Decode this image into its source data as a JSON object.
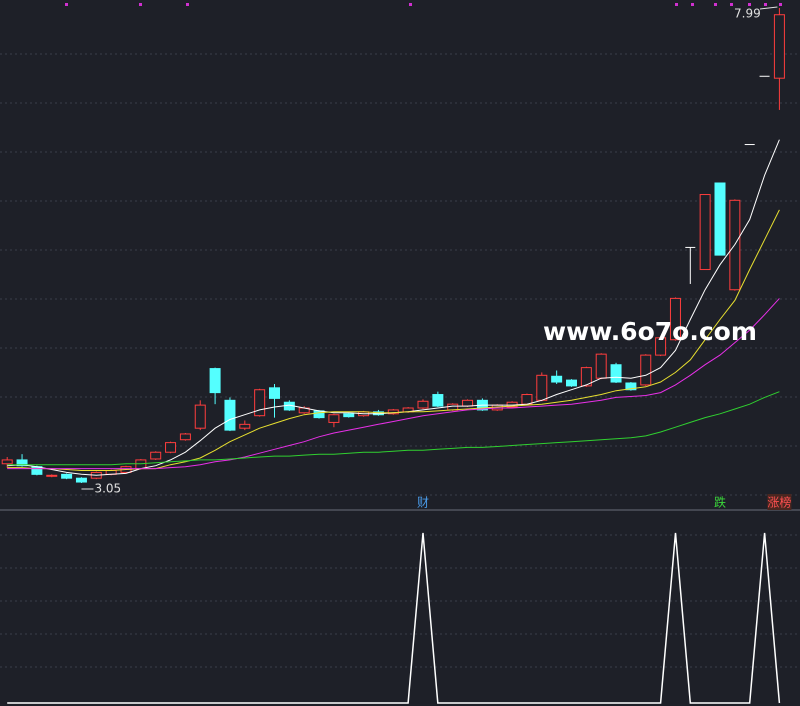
{
  "chart_data": {
    "type": "candlestick",
    "open": [
      3.25,
      3.29,
      3.22,
      3.12,
      3.14,
      3.1,
      3.1,
      3.14,
      3.16,
      3.2,
      3.3,
      3.37,
      3.5,
      3.62,
      4.24,
      3.91,
      3.62,
      3.75,
      4.04,
      3.89,
      3.78,
      3.8,
      3.68,
      3.77,
      3.75,
      3.79,
      3.77,
      3.79,
      3.83,
      3.97,
      3.81,
      3.85,
      3.91,
      3.81,
      3.84,
      3.87,
      3.91,
      4.16,
      4.12,
      4.06,
      4.14,
      4.28,
      4.09,
      4.07,
      4.38,
      4.54,
      5.5,
      5.27,
      6.17,
      5.06,
      6.57,
      7.28,
      7.26
    ],
    "high": [
      3.32,
      3.35,
      3.23,
      3.14,
      3.15,
      3.11,
      3.17,
      3.19,
      3.23,
      3.3,
      3.38,
      3.48,
      3.57,
      3.91,
      4.25,
      3.94,
      3.7,
      4.03,
      4.08,
      3.91,
      3.85,
      3.81,
      3.77,
      3.78,
      3.8,
      3.81,
      3.82,
      3.84,
      3.92,
      4.0,
      3.88,
      3.92,
      3.93,
      3.87,
      3.9,
      3.98,
      4.2,
      4.22,
      4.13,
      4.26,
      4.4,
      4.3,
      4.1,
      4.39,
      4.57,
      4.98,
      5.5,
      6.05,
      6.17,
      6.0,
      6.57,
      7.28,
      7.99
    ],
    "low": [
      3.21,
      3.22,
      3.13,
      3.11,
      3.09,
      3.05,
      3.09,
      3.13,
      3.15,
      3.19,
      3.29,
      3.36,
      3.49,
      3.6,
      3.87,
      3.59,
      3.6,
      3.74,
      3.73,
      3.8,
      3.77,
      3.72,
      3.63,
      3.73,
      3.74,
      3.75,
      3.76,
      3.78,
      3.82,
      3.84,
      3.8,
      3.84,
      3.8,
      3.8,
      3.83,
      3.86,
      3.9,
      4.08,
      4.05,
      4.05,
      4.13,
      4.09,
      4.01,
      4.06,
      4.37,
      4.53,
      5.12,
      5.27,
      5.42,
      5.05,
      6.57,
      7.28,
      6.93
    ],
    "close": [
      3.29,
      3.23,
      3.14,
      3.13,
      3.1,
      3.06,
      3.16,
      3.18,
      3.22,
      3.29,
      3.37,
      3.47,
      3.56,
      3.86,
      3.99,
      3.6,
      3.66,
      4.02,
      3.93,
      3.81,
      3.83,
      3.73,
      3.76,
      3.74,
      3.79,
      3.76,
      3.81,
      3.83,
      3.9,
      3.85,
      3.87,
      3.91,
      3.81,
      3.86,
      3.89,
      3.97,
      4.17,
      4.1,
      4.06,
      4.25,
      4.39,
      4.1,
      4.02,
      4.38,
      4.56,
      4.97,
      5.5,
      6.05,
      5.42,
      5.99,
      6.57,
      7.28,
      7.92
    ],
    "up_color": "#ff3d3d",
    "down_color": "#54ffff",
    "flat_color": "#ffffff",
    "series": [
      {
        "color": "#ffffff",
        "values": [
          3.23,
          3.24,
          3.22,
          3.19,
          3.16,
          3.14,
          3.13,
          3.14,
          3.15,
          3.2,
          3.23,
          3.29,
          3.37,
          3.49,
          3.62,
          3.71,
          3.76,
          3.81,
          3.84,
          3.86,
          3.83,
          3.8,
          3.78,
          3.78,
          3.77,
          3.77,
          3.78,
          3.79,
          3.81,
          3.83,
          3.85,
          3.85,
          3.86,
          3.86,
          3.86,
          3.87,
          3.91,
          3.97,
          4.02,
          4.07,
          4.14,
          4.15,
          4.14,
          4.17,
          4.25,
          4.43,
          4.75,
          5.06,
          5.32,
          5.53,
          5.79,
          6.25,
          6.62
        ]
      },
      {
        "color": "#e8e030",
        "values": [
          3.21,
          3.21,
          3.2,
          3.2,
          3.19,
          3.18,
          3.18,
          3.18,
          3.19,
          3.2,
          3.2,
          3.24,
          3.27,
          3.31,
          3.39,
          3.48,
          3.55,
          3.62,
          3.67,
          3.72,
          3.76,
          3.78,
          3.79,
          3.79,
          3.79,
          3.78,
          3.78,
          3.79,
          3.79,
          3.8,
          3.81,
          3.82,
          3.83,
          3.84,
          3.85,
          3.86,
          3.87,
          3.89,
          3.91,
          3.94,
          3.97,
          4.01,
          4.03,
          4.05,
          4.1,
          4.2,
          4.33,
          4.54,
          4.75,
          4.95,
          5.27,
          5.58,
          5.89
        ]
      },
      {
        "color": "#e830e8",
        "values": [
          3.2,
          3.2,
          3.2,
          3.2,
          3.2,
          3.2,
          3.2,
          3.2,
          3.2,
          3.2,
          3.2,
          3.21,
          3.22,
          3.24,
          3.27,
          3.29,
          3.32,
          3.36,
          3.4,
          3.44,
          3.48,
          3.53,
          3.57,
          3.6,
          3.63,
          3.66,
          3.69,
          3.72,
          3.75,
          3.77,
          3.79,
          3.81,
          3.82,
          3.83,
          3.83,
          3.84,
          3.85,
          3.86,
          3.87,
          3.89,
          3.91,
          3.94,
          3.95,
          3.96,
          3.99,
          4.07,
          4.17,
          4.28,
          4.38,
          4.51,
          4.64,
          4.8,
          4.97
        ]
      },
      {
        "color": "#30d030",
        "values": [
          3.24,
          3.24,
          3.24,
          3.24,
          3.24,
          3.24,
          3.24,
          3.24,
          3.25,
          3.25,
          3.26,
          3.27,
          3.28,
          3.29,
          3.29,
          3.3,
          3.31,
          3.32,
          3.33,
          3.33,
          3.34,
          3.35,
          3.35,
          3.36,
          3.37,
          3.37,
          3.38,
          3.39,
          3.39,
          3.4,
          3.41,
          3.42,
          3.42,
          3.43,
          3.44,
          3.45,
          3.46,
          3.47,
          3.48,
          3.49,
          3.5,
          3.51,
          3.52,
          3.54,
          3.58,
          3.63,
          3.68,
          3.73,
          3.77,
          3.82,
          3.87,
          3.94,
          4.0
        ]
      }
    ],
    "indicator": {
      "color": "#ffffff",
      "values": [
        0,
        0,
        0,
        0,
        0,
        0,
        0,
        0,
        0,
        0,
        0,
        0,
        0,
        0,
        0,
        0,
        0,
        0,
        0,
        0,
        0,
        0,
        0,
        0,
        0,
        0,
        0,
        0,
        1,
        0,
        0,
        0,
        0,
        0,
        0,
        0,
        0,
        0,
        0,
        0,
        0,
        0,
        0,
        0,
        0,
        1,
        0,
        0,
        0,
        0,
        0,
        1,
        0
      ]
    },
    "signal_labels": [
      null,
      null,
      null,
      null,
      null,
      null,
      null,
      null,
      null,
      null,
      null,
      null,
      null,
      null,
      null,
      null,
      null,
      null,
      null,
      null,
      null,
      null,
      null,
      null,
      null,
      null,
      null,
      null,
      "财",
      null,
      null,
      null,
      null,
      null,
      null,
      null,
      null,
      null,
      null,
      null,
      null,
      null,
      null,
      null,
      null,
      null,
      null,
      null,
      "跌",
      null,
      null,
      null,
      "涨榜"
    ],
    "signal_colors": [
      null,
      null,
      null,
      null,
      null,
      null,
      null,
      null,
      null,
      null,
      null,
      null,
      null,
      null,
      null,
      null,
      null,
      null,
      null,
      null,
      null,
      null,
      null,
      null,
      null,
      null,
      null,
      null,
      "#4a9be8",
      null,
      null,
      null,
      null,
      null,
      null,
      null,
      null,
      null,
      null,
      null,
      null,
      null,
      null,
      null,
      null,
      null,
      null,
      null,
      "#3ad63a",
      null,
      null,
      null,
      "#ff5050"
    ],
    "watermark": "www.6o7o.com"
  }
}
